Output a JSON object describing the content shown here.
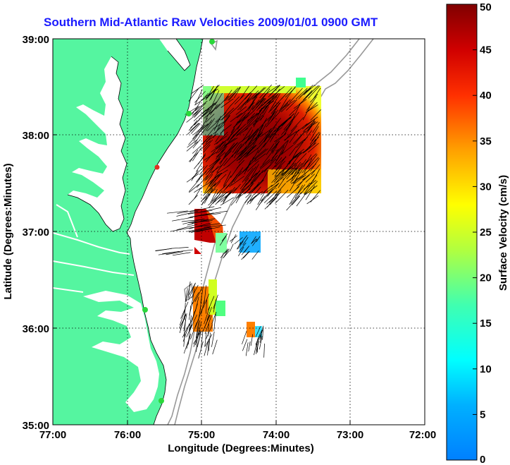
{
  "title": "Southern Mid-Atlantic Raw Velocities 2009/01/01 0900 GMT",
  "x_axis": {
    "label": "Longitude (Degrees:Minutes)",
    "ticks": [
      "77:00",
      "76:00",
      "75:00",
      "74:00",
      "73:00",
      "72:00"
    ]
  },
  "y_axis": {
    "label": "Latitude (Degrees:Minutes)",
    "ticks": [
      "39:00",
      "38:00",
      "37:00",
      "36:00",
      "35:00"
    ]
  },
  "colorbar": {
    "label": "Surface Velocity (cm/s)",
    "ticks": [
      "50",
      "45",
      "40",
      "35",
      "30",
      "25",
      "20",
      "15",
      "10",
      "5",
      "0"
    ],
    "min": 0,
    "max": 50,
    "colormap": "jet"
  },
  "colors": {
    "title": "#1a1aff",
    "land": "#55f5a0",
    "bathymetry": "#999999"
  }
}
